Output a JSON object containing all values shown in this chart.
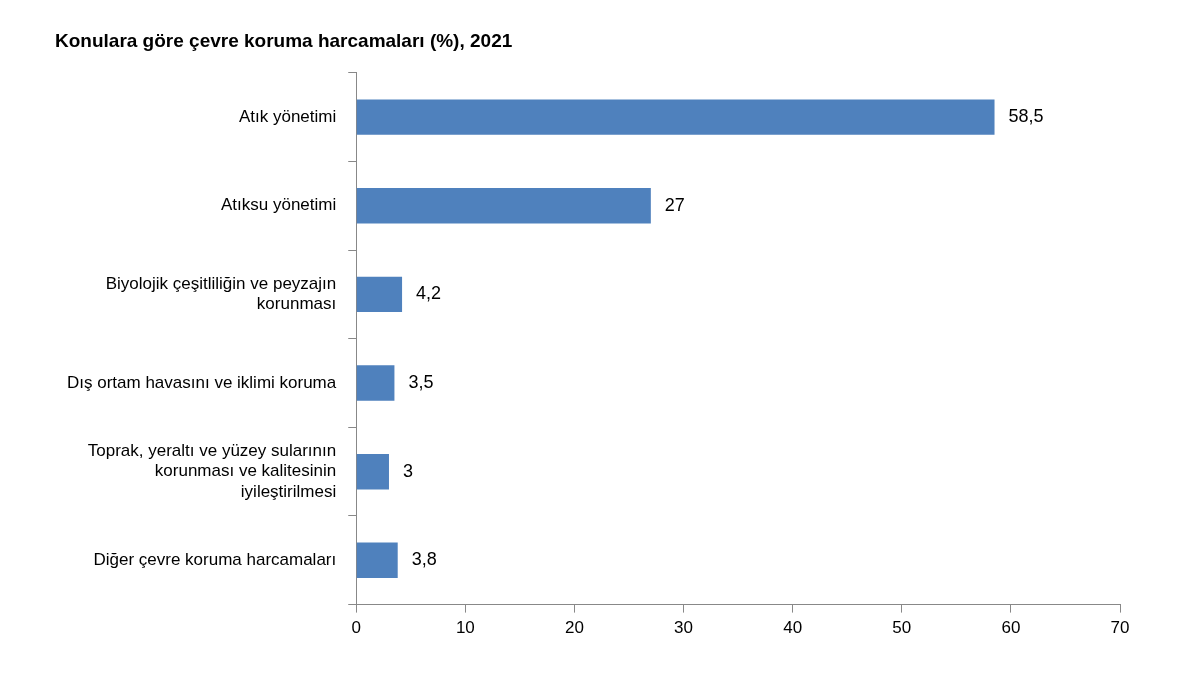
{
  "chart_data": {
    "type": "bar",
    "orientation": "horizontal",
    "title": "Konulara göre çevre koruma harcamaları (%), 2021",
    "categories": [
      "Atık yönetimi",
      "Atıksu yönetimi",
      "Biyolojik çeşitliliğin ve peyzajın korunması",
      "Dış ortam havasını ve iklimi koruma",
      "Toprak, yeraltı ve yüzey sularının korunması ve kalitesinin iyileştirilmesi",
      "Diğer çevre koruma harcamaları"
    ],
    "values": [
      58.5,
      27,
      4.2,
      3.5,
      3,
      3.8
    ],
    "value_labels": [
      "58,5",
      "27",
      "4,2",
      "3,5",
      "3",
      "3,8"
    ],
    "color": "#4f81bd",
    "xlim": [
      0,
      70
    ],
    "xticks": [
      0,
      10,
      20,
      30,
      40,
      50,
      60,
      70
    ],
    "grid": false,
    "legend": false
  }
}
